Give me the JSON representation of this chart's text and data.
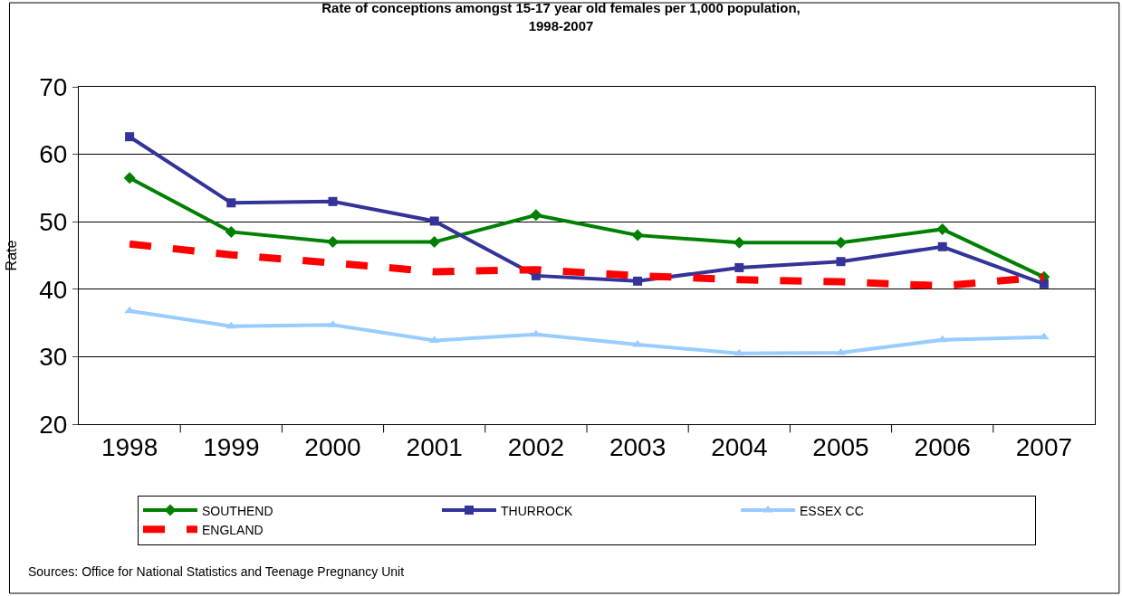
{
  "chart_data": {
    "type": "line",
    "title": "Rate of conceptions amongst 15-17 year old females per 1,000 population,\n1998-2007",
    "ylabel": "Rate",
    "categories": [
      "1998",
      "1999",
      "2000",
      "2001",
      "2002",
      "2003",
      "2004",
      "2005",
      "2006",
      "2007"
    ],
    "series": [
      {
        "name": "SOUTHEND",
        "color": "#008000",
        "marker": "diamond",
        "line_style": "solid",
        "values": [
          56.5,
          48.5,
          47.0,
          47.0,
          51.0,
          48.0,
          46.9,
          46.9,
          48.9,
          41.8
        ]
      },
      {
        "name": "THURROCK",
        "color": "#333399",
        "marker": "square",
        "line_style": "solid",
        "values": [
          62.6,
          52.8,
          53.0,
          50.1,
          42.0,
          41.2,
          43.2,
          44.1,
          46.3,
          40.8
        ]
      },
      {
        "name": "ESSEX CC",
        "color": "#99ccff",
        "marker": "triangle",
        "line_style": "solid",
        "values": [
          36.8,
          34.5,
          34.7,
          32.4,
          33.3,
          31.8,
          30.5,
          30.6,
          32.5,
          32.9
        ]
      },
      {
        "name": "ENGLAND",
        "color": "#ff0000",
        "marker": "none",
        "line_style": "dashed",
        "values": [
          46.7,
          45.1,
          43.9,
          42.6,
          42.9,
          42.0,
          41.4,
          41.1,
          40.5,
          41.8
        ]
      }
    ],
    "ylim": [
      20,
      70
    ],
    "yticks": [
      20,
      30,
      40,
      50,
      60,
      70
    ],
    "grid": "y",
    "legend": "bottom",
    "annotations": [
      "Sources: Office for National Statistics and Teenage Pregnancy Unit"
    ]
  }
}
